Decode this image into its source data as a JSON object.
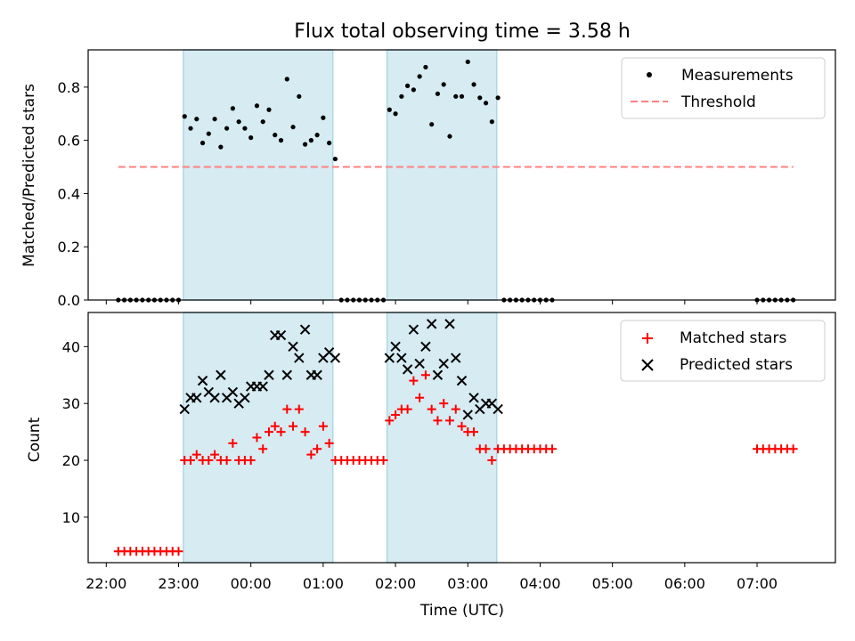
{
  "figure": {
    "title": "Flux total observing time = 3.58 h",
    "xlabel": "Time (UTC)"
  },
  "colors": {
    "observing_span": "#add8e6",
    "measurements": "#000000",
    "threshold": "#ff8080",
    "matched": "#ff0000",
    "predicted": "#000000"
  },
  "chart_data": [
    {
      "type": "scatter",
      "ylabel": "Matched/Predicted stars",
      "xlim": [
        "21:45",
        "08:05"
      ],
      "ylim": [
        0,
        0.94
      ],
      "yticks": [
        0.0,
        0.2,
        0.4,
        0.6,
        0.8
      ],
      "ytick_labels": [
        "0.0",
        "0.2",
        "0.4",
        "0.6",
        "0.8"
      ],
      "observing_spans": [
        [
          "23:04",
          "01:08"
        ],
        [
          "01:53",
          "03:24"
        ]
      ],
      "legend": {
        "position": "top-right",
        "entries": [
          "Measurements",
          "Threshold"
        ]
      },
      "series": [
        {
          "name": "Measurements",
          "marker": "dot",
          "points": [
            [
              "22:10",
              0.0
            ],
            [
              "22:15",
              0.0
            ],
            [
              "22:20",
              0.0
            ],
            [
              "22:25",
              0.0
            ],
            [
              "22:30",
              0.0
            ],
            [
              "22:35",
              0.0
            ],
            [
              "22:40",
              0.0
            ],
            [
              "22:45",
              0.0
            ],
            [
              "22:50",
              0.0
            ],
            [
              "22:55",
              0.0
            ],
            [
              "23:00",
              0.0
            ],
            [
              "23:05",
              0.69
            ],
            [
              "23:10",
              0.645
            ],
            [
              "23:15",
              0.68
            ],
            [
              "23:20",
              0.59
            ],
            [
              "23:25",
              0.625
            ],
            [
              "23:30",
              0.68
            ],
            [
              "23:35",
              0.575
            ],
            [
              "23:40",
              0.645
            ],
            [
              "23:45",
              0.72
            ],
            [
              "23:50",
              0.67
            ],
            [
              "23:55",
              0.645
            ],
            [
              "00:00",
              0.61
            ],
            [
              "00:05",
              0.73
            ],
            [
              "00:10",
              0.67
            ],
            [
              "00:15",
              0.715
            ],
            [
              "00:20",
              0.62
            ],
            [
              "00:25",
              0.6
            ],
            [
              "00:30",
              0.83
            ],
            [
              "00:35",
              0.65
            ],
            [
              "00:40",
              0.765
            ],
            [
              "00:45",
              0.585
            ],
            [
              "00:50",
              0.6
            ],
            [
              "00:55",
              0.62
            ],
            [
              "01:00",
              0.685
            ],
            [
              "01:05",
              0.59
            ],
            [
              "01:10",
              0.53
            ],
            [
              "01:15",
              0.0
            ],
            [
              "01:20",
              0.0
            ],
            [
              "01:25",
              0.0
            ],
            [
              "01:30",
              0.0
            ],
            [
              "01:35",
              0.0
            ],
            [
              "01:40",
              0.0
            ],
            [
              "01:45",
              0.0
            ],
            [
              "01:50",
              0.0
            ],
            [
              "01:55",
              0.715
            ],
            [
              "02:00",
              0.7
            ],
            [
              "02:05",
              0.765
            ],
            [
              "02:10",
              0.805
            ],
            [
              "02:15",
              0.79
            ],
            [
              "02:20",
              0.84
            ],
            [
              "02:25",
              0.875
            ],
            [
              "02:30",
              0.66
            ],
            [
              "02:35",
              0.775
            ],
            [
              "02:40",
              0.81
            ],
            [
              "02:45",
              0.615
            ],
            [
              "02:50",
              0.765
            ],
            [
              "02:55",
              0.765
            ],
            [
              "03:00",
              0.895
            ],
            [
              "03:05",
              0.81
            ],
            [
              "03:10",
              0.76
            ],
            [
              "03:15",
              0.74
            ],
            [
              "03:20",
              0.67
            ],
            [
              "03:25",
              0.76
            ],
            [
              "03:30",
              0.0
            ],
            [
              "03:35",
              0.0
            ],
            [
              "03:40",
              0.0
            ],
            [
              "03:45",
              0.0
            ],
            [
              "03:50",
              0.0
            ],
            [
              "03:55",
              0.0
            ],
            [
              "04:00",
              0.0
            ],
            [
              "04:05",
              0.0
            ],
            [
              "04:10",
              0.0
            ],
            [
              "07:00",
              0.0
            ],
            [
              "07:05",
              0.0
            ],
            [
              "07:10",
              0.0
            ],
            [
              "07:15",
              0.0
            ],
            [
              "07:20",
              0.0
            ],
            [
              "07:25",
              0.0
            ],
            [
              "07:30",
              0.0
            ]
          ]
        },
        {
          "name": "Threshold",
          "style": "dashed-line",
          "points": [
            [
              "22:10",
              0.5
            ],
            [
              "07:30",
              0.5
            ]
          ]
        }
      ]
    },
    {
      "type": "scatter",
      "ylabel": "Count",
      "xlim": [
        "21:45",
        "08:05"
      ],
      "ylim": [
        2,
        46
      ],
      "xticks": [
        "22:00",
        "23:00",
        "00:00",
        "01:00",
        "02:00",
        "03:00",
        "04:00",
        "05:00",
        "06:00",
        "07:00"
      ],
      "yticks": [
        10,
        20,
        30,
        40
      ],
      "ytick_labels": [
        "10",
        "20",
        "30",
        "40"
      ],
      "observing_spans": [
        [
          "23:04",
          "01:08"
        ],
        [
          "01:53",
          "03:24"
        ]
      ],
      "legend": {
        "position": "top-right",
        "entries": [
          "Matched stars",
          "Predicted stars"
        ]
      },
      "series": [
        {
          "name": "Matched stars",
          "marker": "plus",
          "points": [
            [
              "22:10",
              4
            ],
            [
              "22:15",
              4
            ],
            [
              "22:20",
              4
            ],
            [
              "22:25",
              4
            ],
            [
              "22:30",
              4
            ],
            [
              "22:35",
              4
            ],
            [
              "22:40",
              4
            ],
            [
              "22:45",
              4
            ],
            [
              "22:50",
              4
            ],
            [
              "22:55",
              4
            ],
            [
              "23:00",
              4
            ],
            [
              "23:05",
              20
            ],
            [
              "23:10",
              20
            ],
            [
              "23:15",
              21
            ],
            [
              "23:20",
              20
            ],
            [
              "23:25",
              20
            ],
            [
              "23:30",
              21
            ],
            [
              "23:35",
              20
            ],
            [
              "23:40",
              20
            ],
            [
              "23:45",
              23
            ],
            [
              "23:50",
              20
            ],
            [
              "23:55",
              20
            ],
            [
              "00:00",
              20
            ],
            [
              "00:05",
              24
            ],
            [
              "00:10",
              22
            ],
            [
              "00:15",
              25
            ],
            [
              "00:20",
              26
            ],
            [
              "00:25",
              25
            ],
            [
              "00:30",
              29
            ],
            [
              "00:35",
              26
            ],
            [
              "00:40",
              29
            ],
            [
              "00:45",
              25
            ],
            [
              "00:50",
              21
            ],
            [
              "00:55",
              22
            ],
            [
              "01:00",
              26
            ],
            [
              "01:05",
              23
            ],
            [
              "01:10",
              20
            ],
            [
              "01:15",
              20
            ],
            [
              "01:20",
              20
            ],
            [
              "01:25",
              20
            ],
            [
              "01:30",
              20
            ],
            [
              "01:35",
              20
            ],
            [
              "01:40",
              20
            ],
            [
              "01:45",
              20
            ],
            [
              "01:50",
              20
            ],
            [
              "01:55",
              27
            ],
            [
              "02:00",
              28
            ],
            [
              "02:05",
              29
            ],
            [
              "02:10",
              29
            ],
            [
              "02:15",
              34
            ],
            [
              "02:20",
              31
            ],
            [
              "02:25",
              35
            ],
            [
              "02:30",
              29
            ],
            [
              "02:35",
              27
            ],
            [
              "02:40",
              30
            ],
            [
              "02:45",
              27
            ],
            [
              "02:50",
              29
            ],
            [
              "02:55",
              26
            ],
            [
              "03:00",
              25
            ],
            [
              "03:05",
              25
            ],
            [
              "03:10",
              22
            ],
            [
              "03:15",
              22
            ],
            [
              "03:20",
              20
            ],
            [
              "03:25",
              22
            ],
            [
              "03:30",
              22
            ],
            [
              "03:35",
              22
            ],
            [
              "03:40",
              22
            ],
            [
              "03:45",
              22
            ],
            [
              "03:50",
              22
            ],
            [
              "03:55",
              22
            ],
            [
              "04:00",
              22
            ],
            [
              "04:05",
              22
            ],
            [
              "04:10",
              22
            ],
            [
              "07:00",
              22
            ],
            [
              "07:05",
              22
            ],
            [
              "07:10",
              22
            ],
            [
              "07:15",
              22
            ],
            [
              "07:20",
              22
            ],
            [
              "07:25",
              22
            ],
            [
              "07:30",
              22
            ]
          ]
        },
        {
          "name": "Predicted stars",
          "marker": "x",
          "points": [
            [
              "23:05",
              29
            ],
            [
              "23:10",
              31
            ],
            [
              "23:15",
              31
            ],
            [
              "23:20",
              34
            ],
            [
              "23:25",
              32
            ],
            [
              "23:30",
              31
            ],
            [
              "23:35",
              35
            ],
            [
              "23:40",
              31
            ],
            [
              "23:45",
              32
            ],
            [
              "23:50",
              30
            ],
            [
              "23:55",
              31
            ],
            [
              "00:00",
              33
            ],
            [
              "00:05",
              33
            ],
            [
              "00:10",
              33
            ],
            [
              "00:15",
              35
            ],
            [
              "00:20",
              42
            ],
            [
              "00:25",
              42
            ],
            [
              "00:30",
              35
            ],
            [
              "00:35",
              40
            ],
            [
              "00:40",
              38
            ],
            [
              "00:45",
              43
            ],
            [
              "00:50",
              35
            ],
            [
              "00:55",
              35
            ],
            [
              "01:00",
              38
            ],
            [
              "01:05",
              39
            ],
            [
              "01:10",
              38
            ],
            [
              "01:55",
              38
            ],
            [
              "02:00",
              40
            ],
            [
              "02:05",
              38
            ],
            [
              "02:10",
              36
            ],
            [
              "02:15",
              43
            ],
            [
              "02:20",
              37
            ],
            [
              "02:25",
              40
            ],
            [
              "02:30",
              44
            ],
            [
              "02:35",
              35
            ],
            [
              "02:40",
              37
            ],
            [
              "02:45",
              44
            ],
            [
              "02:50",
              38
            ],
            [
              "02:55",
              34
            ],
            [
              "03:00",
              28
            ],
            [
              "03:05",
              31
            ],
            [
              "03:10",
              29
            ],
            [
              "03:15",
              30
            ],
            [
              "03:20",
              30
            ],
            [
              "03:25",
              29
            ]
          ]
        }
      ]
    }
  ]
}
